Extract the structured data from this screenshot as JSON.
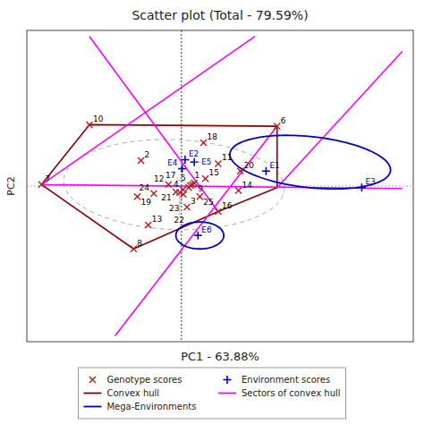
{
  "chart_data": {
    "type": "scatter",
    "title": "Scatter plot (Total - 79.59%)",
    "x_label": "PC1 - 63.88%",
    "y_label": "PC2",
    "xlim": [
      -4.2,
      6.3
    ],
    "ylim": [
      -5.2,
      5.2
    ],
    "tick_labels": false,
    "grid": false,
    "legend": "bottom",
    "hlines": [
      {
        "value": 0,
        "color": "#AAAAAA",
        "line_style": "dotted"
      }
    ],
    "vlines": [
      {
        "value": 0,
        "color": "#333333",
        "line_style": "dotted"
      }
    ],
    "reference_ellipse": {
      "cx": -0.2,
      "cy": 0.05,
      "rx": 3.0,
      "ry": 1.5,
      "angle": -3,
      "color": "#AAAAAA",
      "line_style": "dashed"
    },
    "series": [
      {
        "name": "Genotype scores",
        "type": "scatter",
        "marker": "x",
        "color": "#B22222",
        "labels": [
          "1",
          "2",
          "3",
          "4",
          "5",
          "6",
          "7",
          "8",
          "9",
          "10",
          "11",
          "12",
          "13",
          "14",
          "15",
          "16",
          "17",
          "18",
          "19",
          "20",
          "21",
          "22",
          "23",
          "24",
          "25"
        ],
        "x": [
          0.3,
          -1.1,
          0.15,
          0.05,
          0.2,
          2.6,
          -3.8,
          -1.3,
          0.35,
          -2.5,
          1.0,
          -0.35,
          -0.9,
          1.55,
          0.65,
          1.0,
          0.25,
          0.6,
          -1.2,
          1.6,
          -0.15,
          -0.05,
          0.05,
          -0.75,
          0.5
        ],
        "values": [
          0.05,
          0.85,
          -0.7,
          -0.12,
          -0.05,
          2.0,
          0.05,
          -2.1,
          0.1,
          2.05,
          0.75,
          0.05,
          -1.3,
          -0.15,
          0.25,
          -0.85,
          0.02,
          1.45,
          -0.35,
          0.5,
          -0.2,
          -0.22,
          -0.28,
          -0.25,
          -0.35
        ]
      },
      {
        "name": "Environment scores",
        "type": "scatter",
        "marker": "+",
        "color": "#0000CC",
        "labels": [
          "E1",
          "E2",
          "E3",
          "E4",
          "E5",
          "E6"
        ],
        "x": [
          2.3,
          0.1,
          4.9,
          0.02,
          0.35,
          0.45
        ],
        "values": [
          0.5,
          0.88,
          -0.05,
          0.58,
          0.8,
          -1.65
        ]
      },
      {
        "name": "Convex hull",
        "type": "line",
        "color": "#8B0000",
        "x": [
          -3.8,
          -2.5,
          2.6,
          2.6,
          1.0,
          -1.3,
          -3.8
        ],
        "values": [
          0.05,
          2.05,
          2.0,
          -0.05,
          -0.85,
          -2.1,
          0.05
        ]
      },
      {
        "name": "Sectors of convex hull",
        "type": "line",
        "color": "#FF00FF",
        "x": [
          -3.8,
          6.0,
          null,
          -3.8,
          2.0,
          null,
          2.6,
          -1.8,
          null,
          2.6,
          6.0,
          null,
          1.0,
          -2.5
        ],
        "values": [
          0.05,
          -0.08,
          null,
          0.05,
          5.0,
          null,
          2.0,
          -5.0,
          null,
          -0.05,
          4.5,
          null,
          -0.85,
          5.0
        ]
      },
      {
        "name": "Mega-Environments",
        "type": "ellipse",
        "color": "#0000CC",
        "cx": [
          0.5,
          3.5
        ],
        "cy": [
          -1.65,
          0.8
        ],
        "rx": [
          0.65,
          2.2
        ],
        "ry": [
          0.45,
          0.85
        ],
        "angle": [
          0,
          -8
        ]
      }
    ]
  }
}
